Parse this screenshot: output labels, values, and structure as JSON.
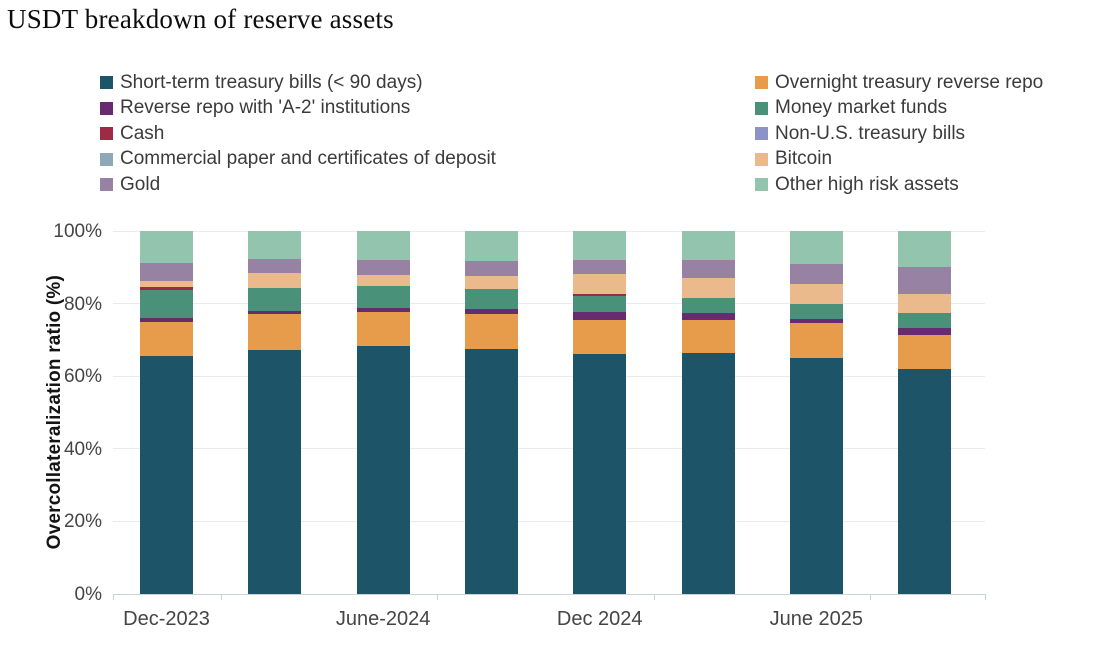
{
  "title": "USDT breakdown of reserve assets",
  "chart_data": {
    "type": "stacked-bar",
    "title": "USDT breakdown of reserve assets",
    "ylabel": "Overcollateralization ratio (%)",
    "ylim": [
      0,
      100
    ],
    "grid": "horizontal",
    "legend_position": "top-two-columns",
    "bars_count": 8,
    "y_ticks": [
      {
        "label": "0%",
        "value": 0
      },
      {
        "label": "20%",
        "value": 20
      },
      {
        "label": "40%",
        "value": 40
      },
      {
        "label": "60%",
        "value": 60
      },
      {
        "label": "80%",
        "value": 80
      },
      {
        "label": "100%",
        "value": 100
      }
    ],
    "x_tick_labels": [
      {
        "label": "Dec-2023",
        "under_bar": 0
      },
      {
        "label": "June-2024",
        "under_bar": 2
      },
      {
        "label": "Dec 2024",
        "under_bar": 4
      },
      {
        "label": "June 2025",
        "under_bar": 6
      }
    ],
    "series": [
      {
        "name": "Short-term treasury bills (< 90 days)",
        "color": "#1E5468",
        "values": [
          65.5,
          67.1,
          68.2,
          67.6,
          66.2,
          66.4,
          65.0,
          62.1
        ]
      },
      {
        "name": "Overnight treasury reverse repo",
        "color": "#E69C4B",
        "values": [
          9.4,
          10.1,
          9.5,
          9.6,
          9.4,
          9.0,
          9.6,
          9.3
        ]
      },
      {
        "name": "Reverse repo with 'A-2' institutions",
        "color": "#672B70",
        "values": [
          1.1,
          0.9,
          1.1,
          1.3,
          2.1,
          2.0,
          1.2,
          2.0
        ]
      },
      {
        "name": "Money market funds",
        "color": "#4A9179",
        "values": [
          7.8,
          6.2,
          6.0,
          5.5,
          4.3,
          4.1,
          4.1,
          4.0
        ]
      },
      {
        "name": "Cash",
        "color": "#9E2B45",
        "values": [
          0.8,
          0,
          0,
          0,
          0.6,
          0,
          0,
          0
        ]
      },
      {
        "name": "Non-U.S. treasury bills",
        "color": "#8B93C7",
        "values": [
          0,
          0,
          0,
          0,
          0,
          0,
          0,
          0
        ]
      },
      {
        "name": "Commercial paper and certificates of deposit",
        "color": "#8FA8B8",
        "values": [
          0,
          0,
          0,
          0,
          0,
          0,
          0,
          0
        ]
      },
      {
        "name": "Bitcoin",
        "color": "#EBBA8C",
        "values": [
          1.5,
          4.0,
          3.0,
          3.7,
          5.6,
          5.6,
          5.6,
          5.2
        ]
      },
      {
        "name": "Gold",
        "color": "#9782A4",
        "values": [
          5.1,
          3.9,
          4.1,
          4.0,
          3.7,
          5.0,
          5.3,
          7.4
        ]
      },
      {
        "name": "Other high risk assets",
        "color": "#92C4AE",
        "values": [
          8.8,
          7.8,
          8.1,
          8.3,
          8.1,
          7.9,
          9.2,
          10.0
        ]
      }
    ],
    "legend_columns": [
      [
        0,
        2,
        4,
        6,
        8
      ],
      [
        1,
        3,
        5,
        7,
        9
      ]
    ]
  }
}
